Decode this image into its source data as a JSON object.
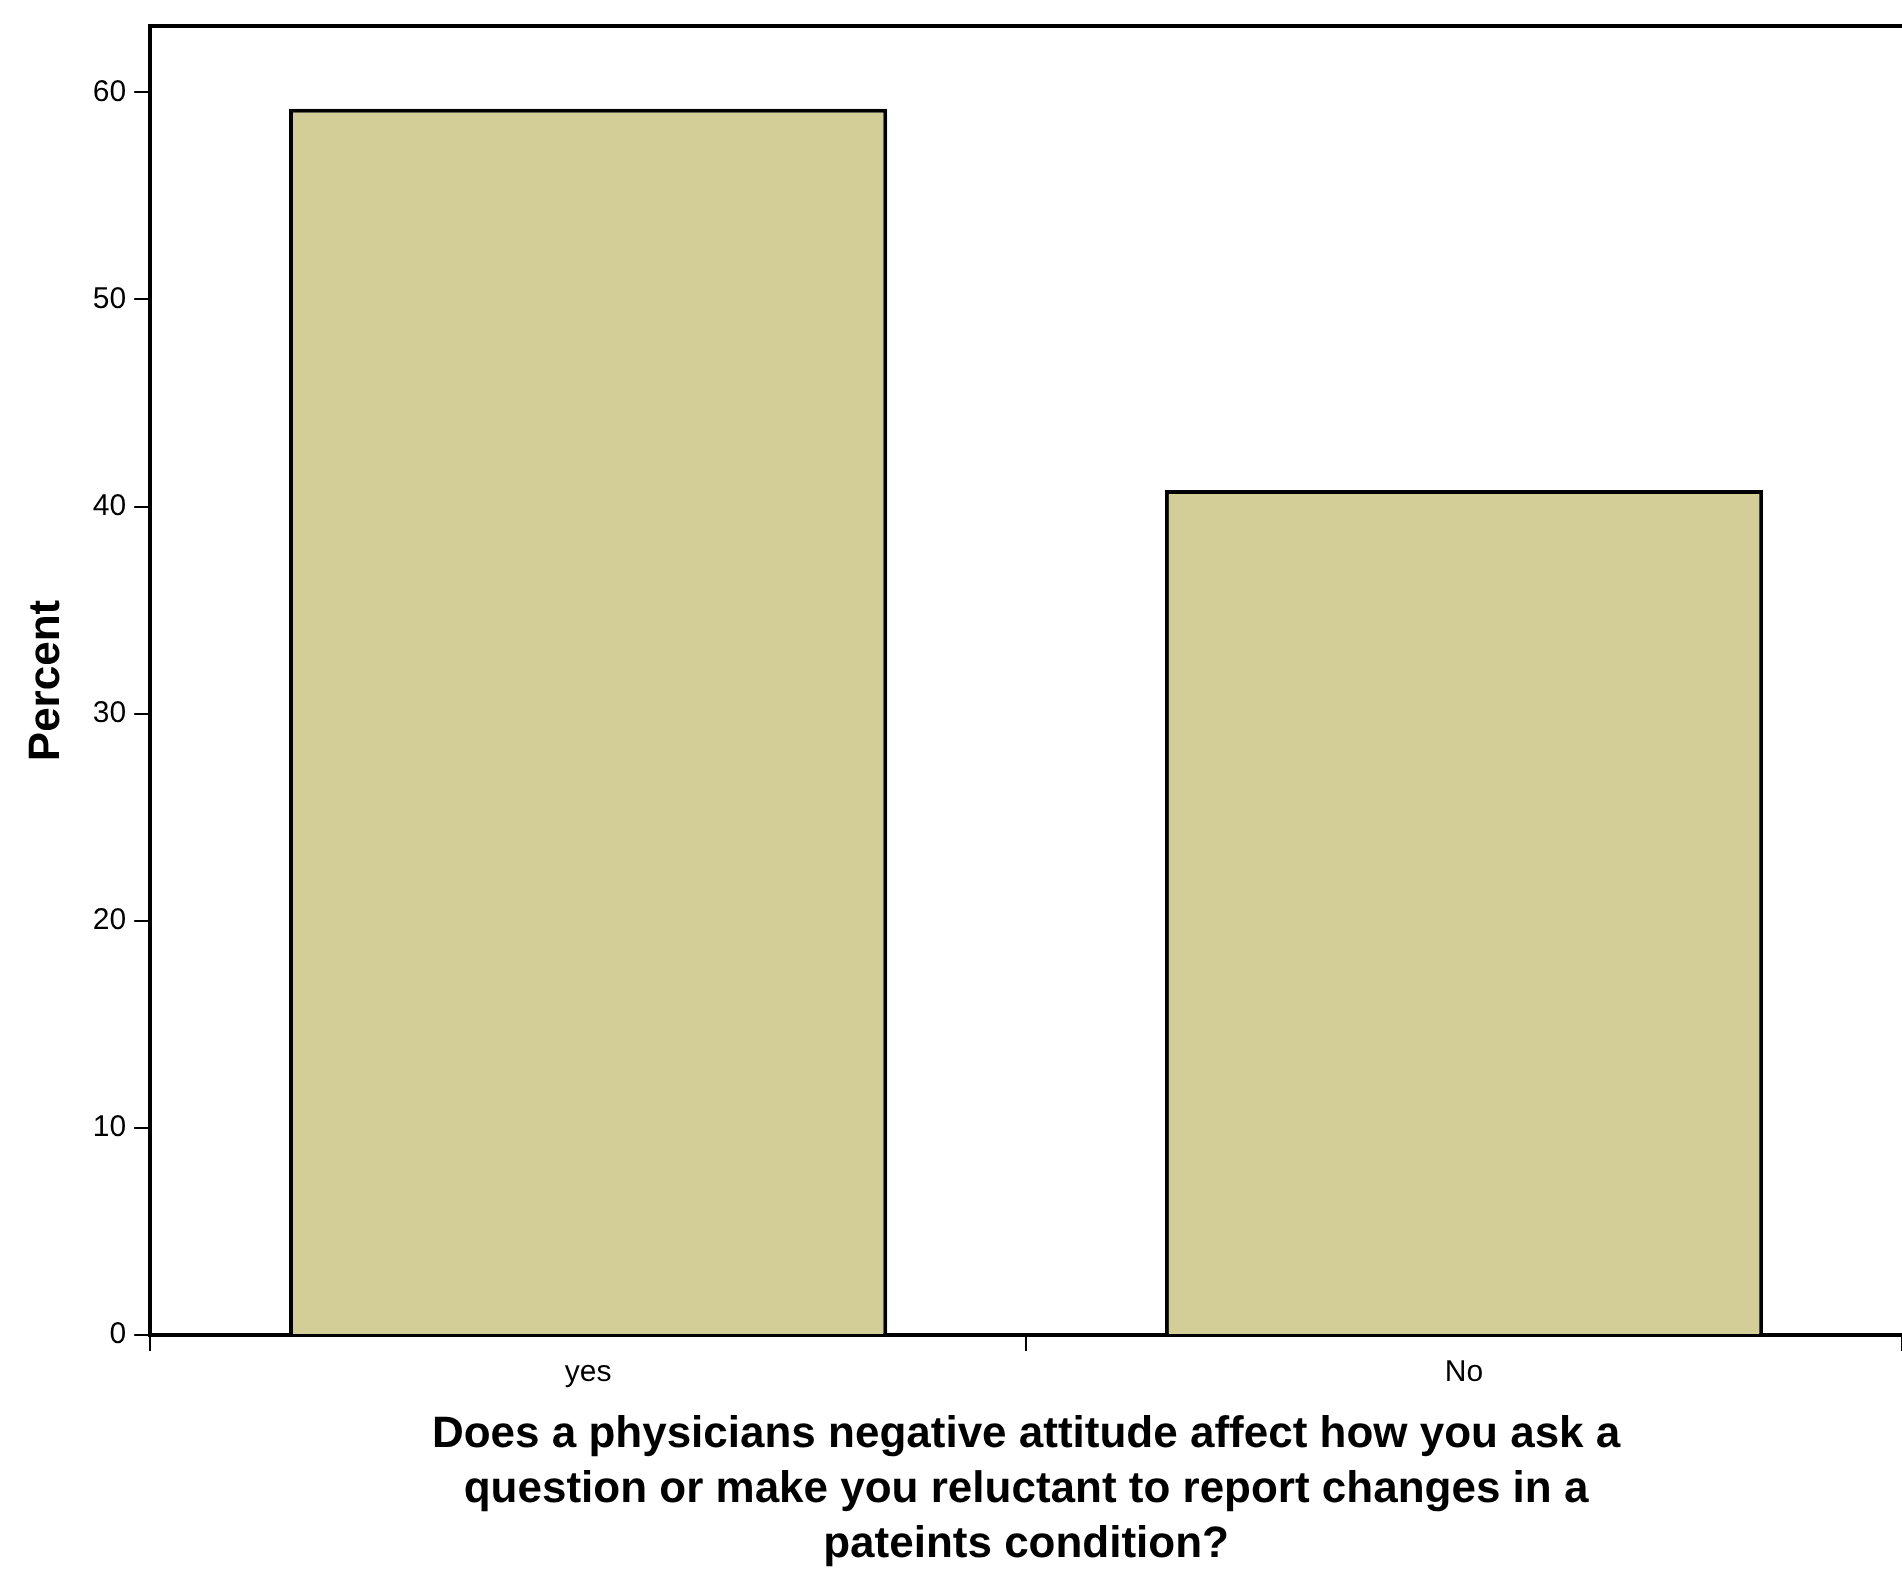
{
  "chart_data": {
    "type": "bar",
    "categories": [
      "yes",
      "No"
    ],
    "values": [
      59.2,
      40.8
    ],
    "color": "#d3cd97",
    "ylim": [
      0,
      63.2
    ],
    "yticks": [
      0,
      10,
      20,
      30,
      40,
      50,
      60
    ],
    "ylabel": "Percent",
    "xlabel": "Does a physicians negative attitude affect how you ask a question or make you reluctant to report changes in a pateints condition?",
    "grid": false,
    "legend": false
  }
}
